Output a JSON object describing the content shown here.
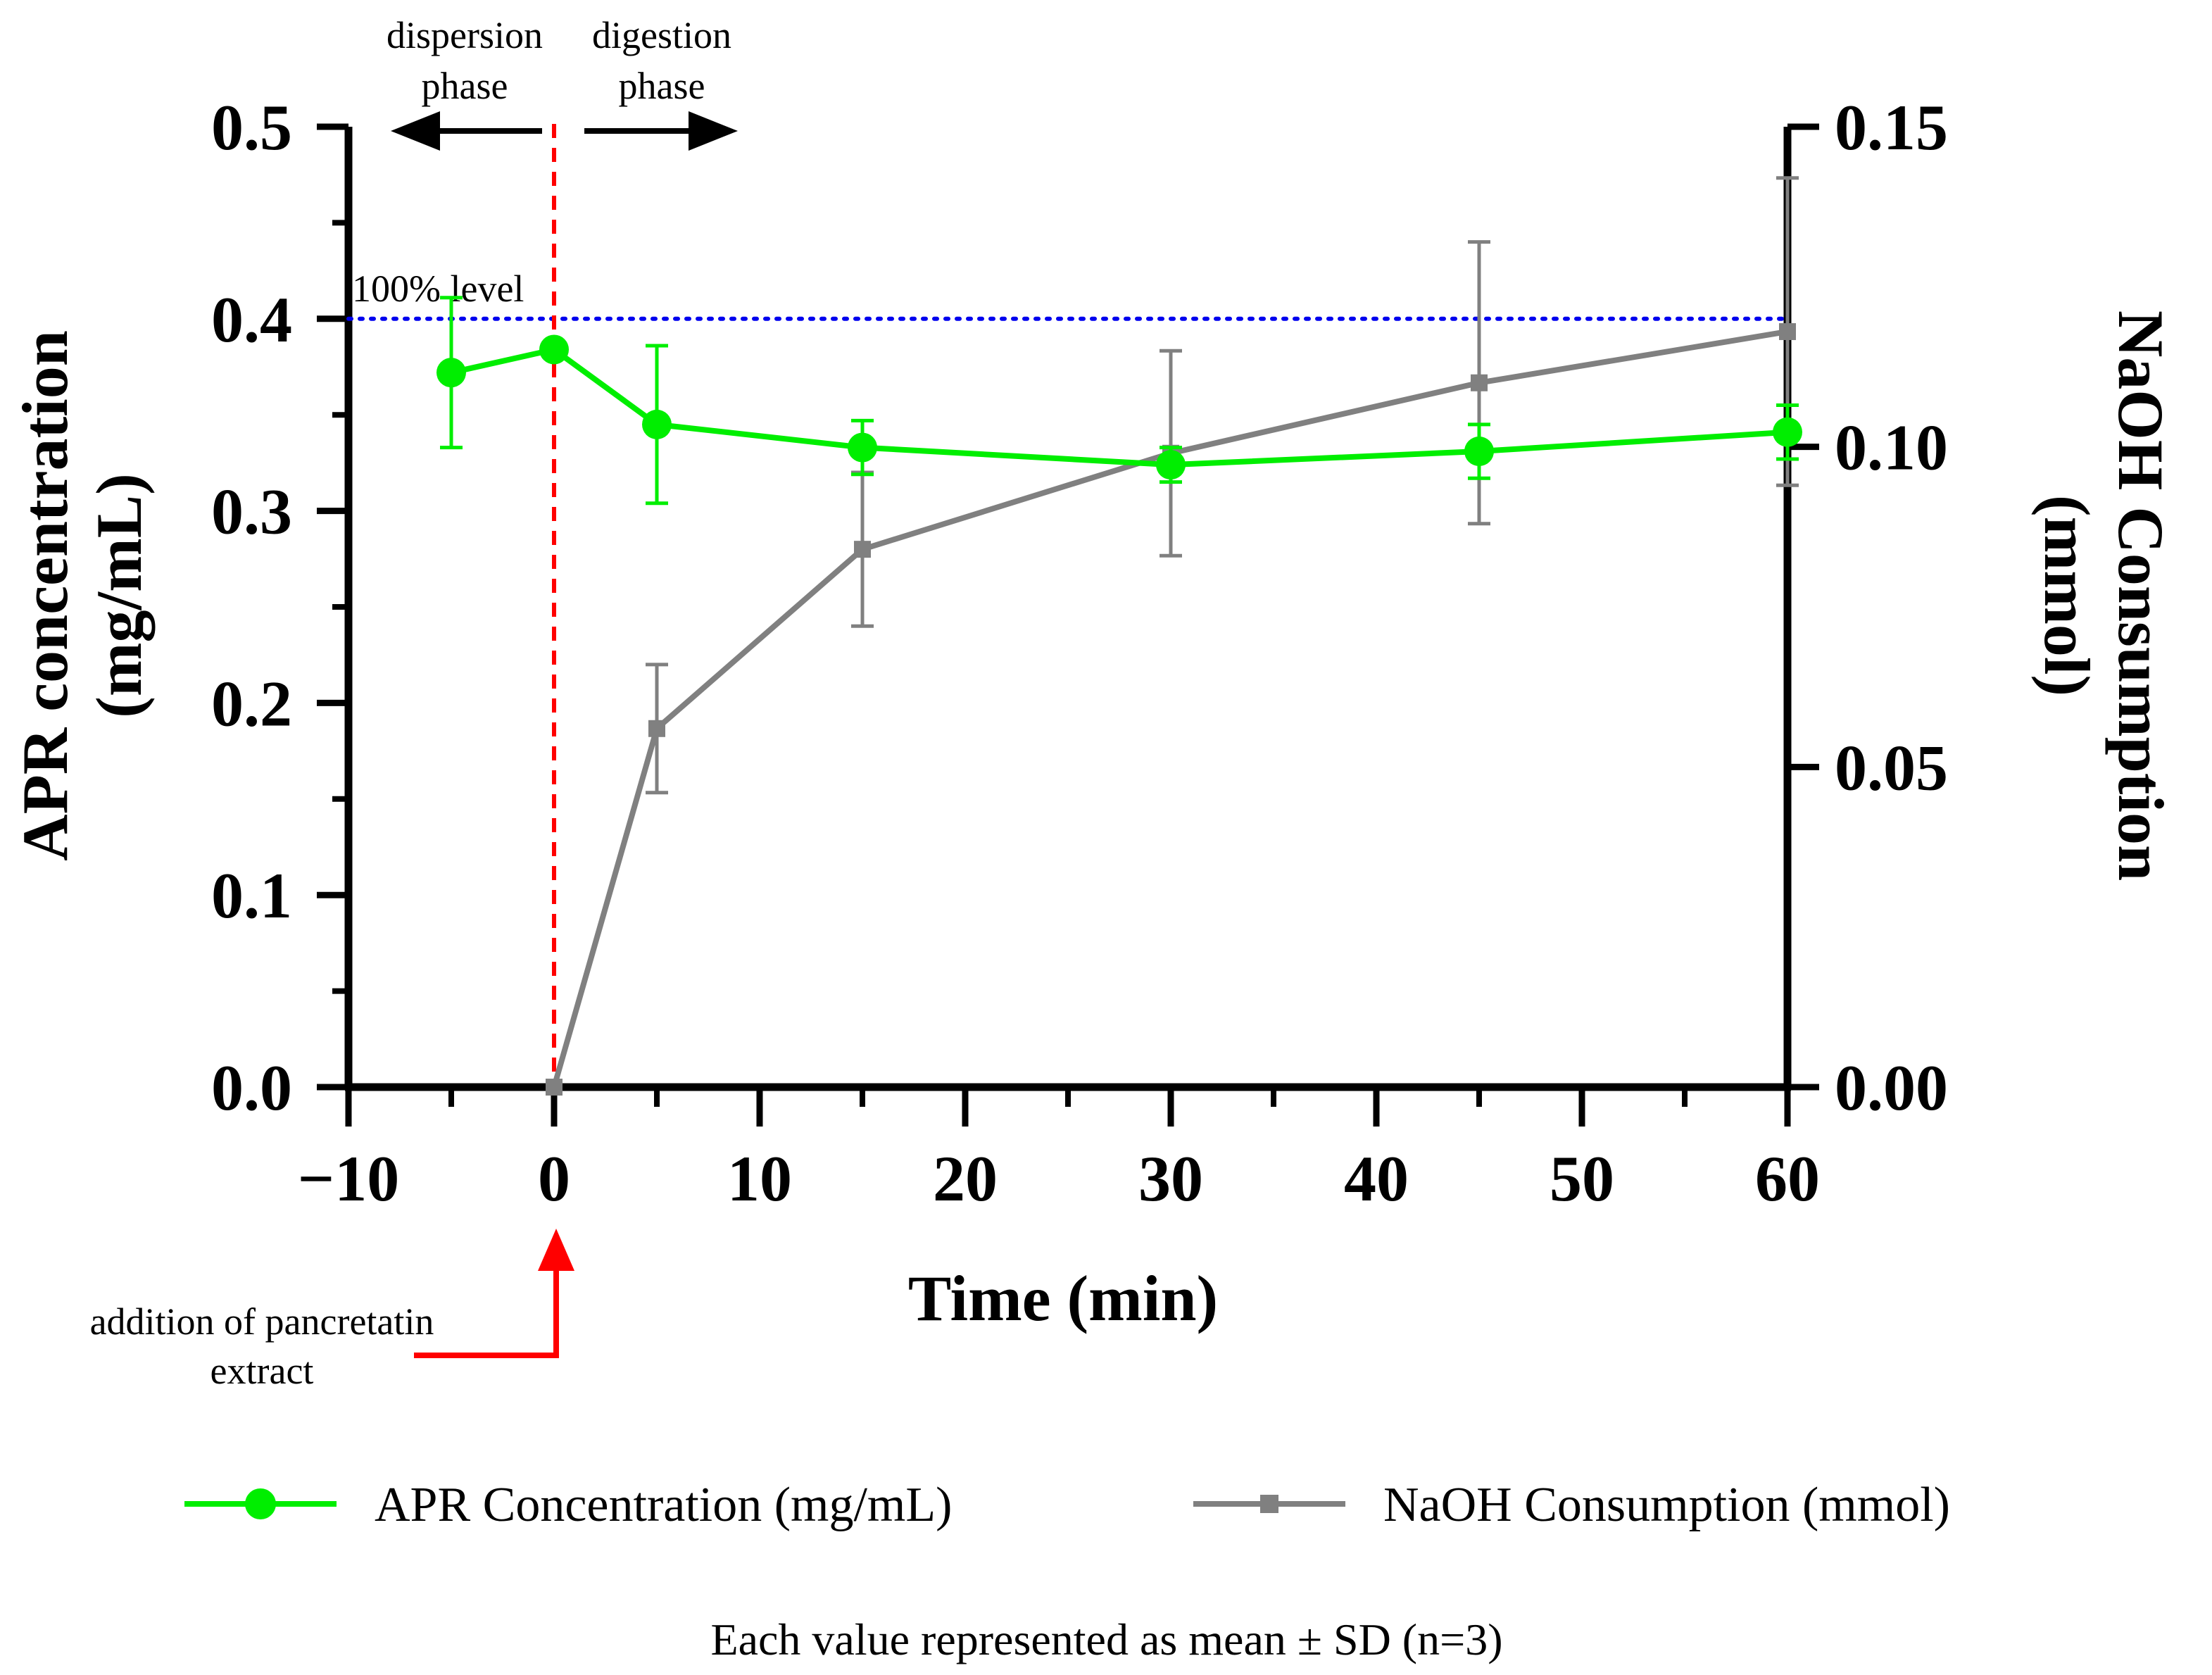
{
  "chart_data": {
    "type": "line",
    "x": [
      -5,
      0,
      5,
      15,
      30,
      45,
      60
    ],
    "xlabel": "Time (min)",
    "xlim": [
      -10,
      60
    ],
    "xticks": [
      -10,
      0,
      10,
      20,
      30,
      40,
      50,
      60
    ],
    "xtick_labels": [
      "−10",
      "0",
      "10",
      "20",
      "30",
      "40",
      "50",
      "60"
    ],
    "ylabel": "APR concentration (mg/mL)",
    "ylabel_lines": [
      "APR concentration",
      "(mg/mL)"
    ],
    "ylim": [
      0,
      0.5
    ],
    "yticks": [
      0.0,
      0.1,
      0.2,
      0.3,
      0.4,
      0.5
    ],
    "ytick_labels": [
      "0.0",
      "0.1",
      "0.2",
      "0.3",
      "0.4",
      "0.5"
    ],
    "y2label": "NaOH Consumption (mmol)",
    "y2label_lines": [
      "NaOH Consumption",
      "(mmol)"
    ],
    "y2lim": [
      0,
      0.15
    ],
    "y2ticks": [
      0.0,
      0.05,
      0.1,
      0.15
    ],
    "y2tick_labels": [
      "0.00",
      "0.05",
      "0.10",
      "0.15"
    ],
    "series": [
      {
        "name": "APR Concentration (mg/mL)",
        "axis": "left",
        "color": "#00ee00",
        "marker": "circle",
        "x": [
          -5,
          0,
          5,
          15,
          30,
          45,
          60
        ],
        "values": [
          0.372,
          0.384,
          0.345,
          0.333,
          0.324,
          0.331,
          0.341
        ],
        "error": [
          0.039,
          0.0,
          0.041,
          0.014,
          0.009,
          0.014,
          0.014
        ]
      },
      {
        "name": "NaOH Consumption (mmol)",
        "axis": "right",
        "color": "#808080",
        "marker": "square",
        "x": [
          0,
          5,
          15,
          30,
          45,
          60
        ],
        "values": [
          0.0,
          0.056,
          0.084,
          0.099,
          0.11,
          0.118
        ],
        "error": [
          0.0,
          0.01,
          0.012,
          0.016,
          0.022,
          0.024
        ]
      }
    ],
    "reference_line": {
      "label": "100% level",
      "value": 0.4,
      "color": "#0000ee",
      "style": "dotted"
    },
    "event_line": {
      "x": 0,
      "color": "#ff0000",
      "style": "dashed"
    },
    "annotations": {
      "dispersion": [
        "dispersion",
        "phase"
      ],
      "digestion": [
        "digestion",
        "phase"
      ],
      "addition": [
        "addition of pancretatin",
        "extract"
      ],
      "addition_color": "#ff0000"
    },
    "legend_position": "bottom",
    "footer": "Each value represented as mean ± SD (n=3)"
  }
}
